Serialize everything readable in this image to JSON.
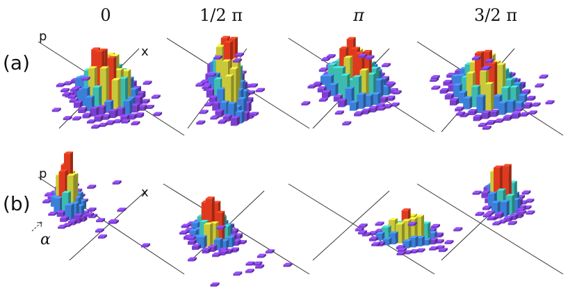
{
  "figure": {
    "column_headers": [
      "0",
      "1/2 π",
      "π",
      "3/2 π"
    ],
    "row_labels": [
      "(a)",
      "(b)"
    ],
    "axis_label_p": "p",
    "axis_label_x": "x",
    "displacement_label": "α"
  },
  "colors": {
    "histogram_low": "#7b3fd0",
    "histogram_mid_low": "#3b7fd8",
    "histogram_mid": "#3cbcb0",
    "histogram_mid_high": "#c9c83a",
    "histogram_high": "#e03a1e",
    "axis_line": "#333333"
  }
}
